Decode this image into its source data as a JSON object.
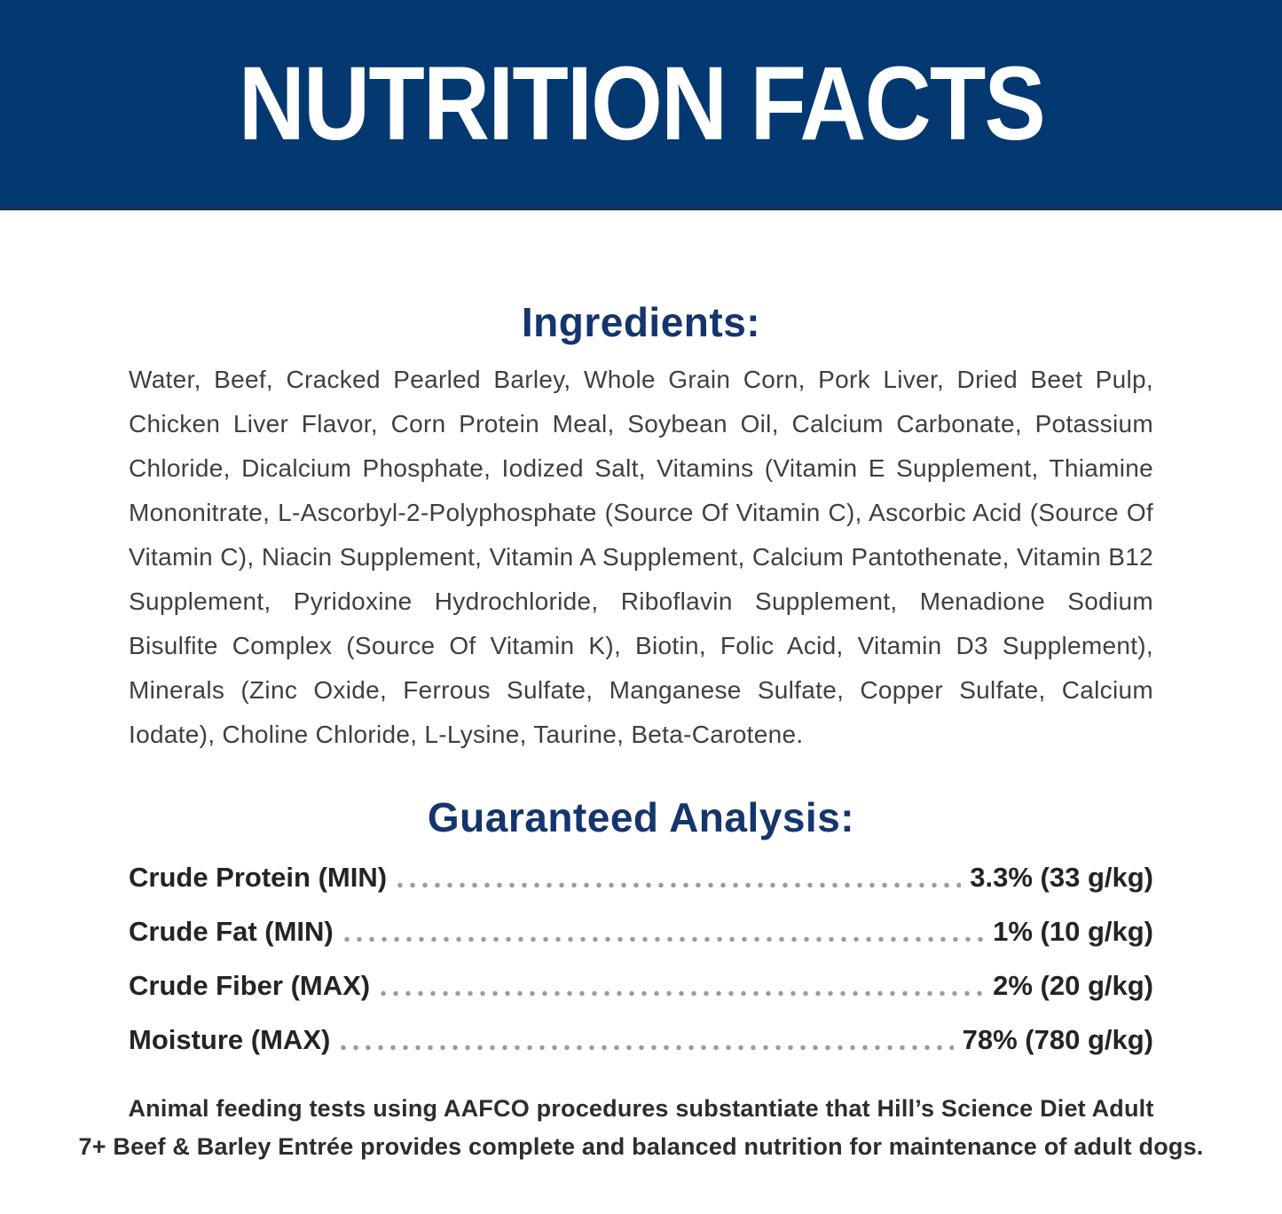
{
  "header": {
    "title": "NUTRITION FACTS"
  },
  "ingredients": {
    "heading": "Ingredients:",
    "text": "Water, Beef, Cracked Pearled Barley, Whole Grain Corn, Pork Liver, Dried Beet Pulp, Chicken Liver Flavor, Corn Protein Meal, Soybean Oil, Calcium Carbonate, Potassium Chloride, Dicalcium Phosphate, Iodized Salt, Vitamins (Vitamin E Supplement, Thiamine Mononitrate, L-Ascorbyl-2-Polyphosphate (Source Of Vitamin C), Ascorbic Acid (Source Of Vitamin C), Niacin Supplement, Vitamin A Supplement, Calcium Pantothenate, Vitamin B12 Supplement, Pyridoxine Hydrochloride, Riboflavin Supplement, Menadione Sodium Bisulfite Complex (Source Of Vitamin K), Biotin, Folic Acid, Vitamin D3 Supplement), Minerals (Zinc Oxide, Ferrous Sulfate, Manganese Sulfate, Copper Sulfate, Calcium Iodate), Choline Chloride, L-Lysine, Taurine, Beta-Carotene."
  },
  "guaranteed_analysis": {
    "heading": "Guaranteed Analysis:",
    "rows": [
      {
        "label": "Crude Protein (MIN)",
        "value": "3.3% (33 g/kg)"
      },
      {
        "label": "Crude Fat (MIN)",
        "value": "1% (10 g/kg)"
      },
      {
        "label": "Crude Fiber (MAX)",
        "value": "2% (20 g/kg)"
      },
      {
        "label": "Moisture (MAX)",
        "value": "78% (780 g/kg)"
      }
    ]
  },
  "footer": {
    "line1": "Animal feeding tests using AAFCO procedures substantiate that Hill’s Science Diet Adult",
    "line2": "7+ Beef & Barley Entrée provides complete and balanced nutrition for maintenance of adult dogs."
  },
  "colors": {
    "banner_background": "#043871",
    "banner_text": "#ffffff",
    "heading_navy": "#14356e",
    "body_text": "#3f3f3f",
    "analysis_text": "#242424",
    "dot_leader": "#9b9b9b",
    "footer_text": "#2d2d2d"
  }
}
